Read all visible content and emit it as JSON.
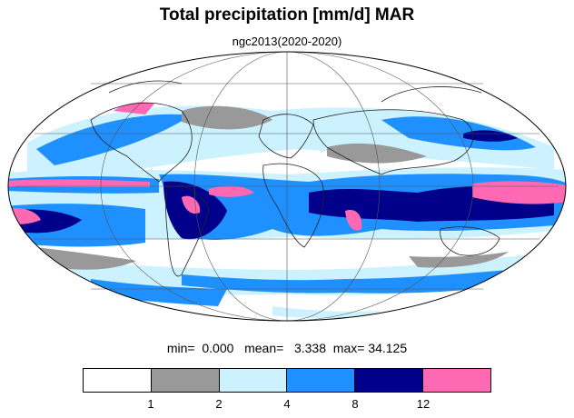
{
  "title": "Total precipitation [mm/d] MAR",
  "subtitle": "ngc2013(2020-2020)",
  "stats": {
    "min_label": "min=",
    "min_value": "0.000",
    "mean_label": "mean=",
    "mean_value": "3.338",
    "max_label": "max=",
    "max_value": "34.125"
  },
  "colorbar": {
    "colors": [
      "#ffffff",
      "#999999",
      "#ccf2ff",
      "#1e90ff",
      "#00008b",
      "#ff69b4"
    ],
    "ticks": [
      "1",
      "2",
      "4",
      "8",
      "12"
    ]
  }
}
